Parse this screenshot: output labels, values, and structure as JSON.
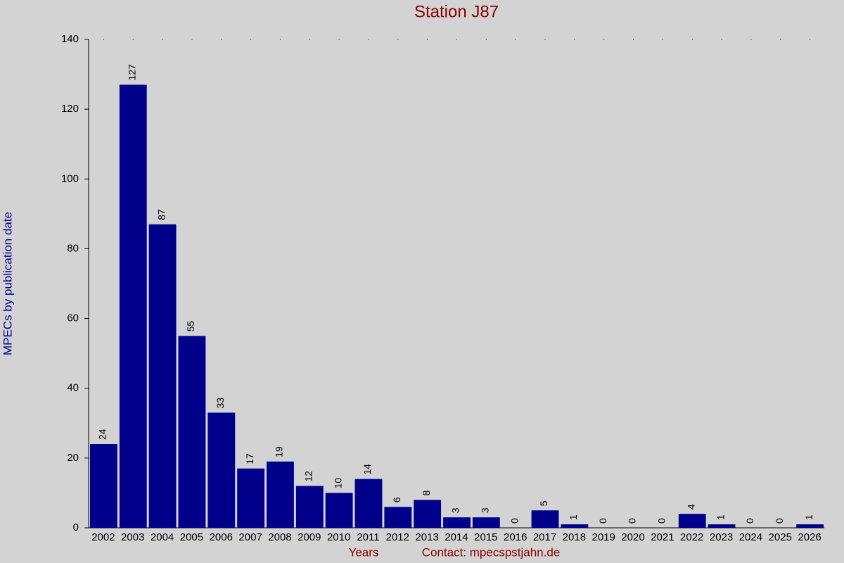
{
  "chart_data": {
    "type": "bar",
    "title": "Station J87",
    "x_label": "Years",
    "y_label": "MPECs by publication date",
    "annotation": "Contact: mpecspstjahn.de",
    "categories": [
      "2002",
      "2003",
      "2004",
      "2005",
      "2006",
      "2007",
      "2008",
      "2009",
      "2010",
      "2011",
      "2012",
      "2013",
      "2014",
      "2015",
      "2016",
      "2017",
      "2018",
      "2019",
      "2020",
      "2021",
      "2022",
      "2023",
      "2024",
      "2025",
      "2026"
    ],
    "values": [
      24,
      127,
      87,
      55,
      33,
      17,
      19,
      12,
      10,
      14,
      6,
      8,
      3,
      3,
      0,
      5,
      1,
      0,
      0,
      0,
      4,
      1,
      0,
      0,
      1
    ],
    "color": "#00008b",
    "ylim": [
      0,
      140
    ],
    "yticks": [
      0,
      20,
      40,
      60,
      80,
      100,
      120,
      140
    ]
  }
}
